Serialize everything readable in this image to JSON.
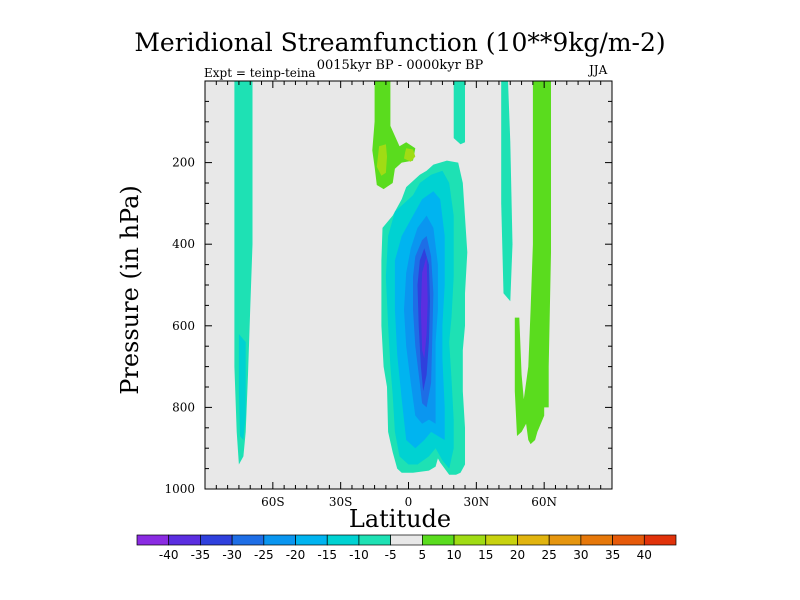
{
  "chart_data": {
    "type": "heatmap",
    "title": "Meridional Streamfunction (10**9kg/m-2)",
    "subtitle": "0015kyr BP - 0000kyr BP",
    "experiment": "Expt = teinp-teina",
    "season": "JJA",
    "xlabel": "Latitude",
    "ylabel": "Pressure (in hPa)",
    "x_range": [
      -90,
      90
    ],
    "y_range": [
      0,
      1000
    ],
    "x_ticks": [
      {
        "value": -60,
        "label": "60S"
      },
      {
        "value": -30,
        "label": "30S"
      },
      {
        "value": 0,
        "label": "0"
      },
      {
        "value": 30,
        "label": "30N"
      },
      {
        "value": 60,
        "label": "60N"
      }
    ],
    "y_ticks": [
      {
        "value": 200,
        "label": "200"
      },
      {
        "value": 400,
        "label": "400"
      },
      {
        "value": 600,
        "label": "600"
      },
      {
        "value": 800,
        "label": "800"
      },
      {
        "value": 1000,
        "label": "1000"
      }
    ],
    "colorbar": {
      "levels": [
        -40,
        -35,
        -30,
        -25,
        -20,
        -15,
        -10,
        -5,
        5,
        10,
        15,
        20,
        25,
        30,
        35,
        40
      ],
      "colors": [
        "#8a2be2",
        "#5b2ee0",
        "#2f40dd",
        "#1e6ee6",
        "#0a96f0",
        "#00b4f0",
        "#00d2d2",
        "#1ee1b4",
        "#e8e8e8",
        "#5adc1e",
        "#a0dc14",
        "#c8d20f",
        "#e1b40f",
        "#e6960f",
        "#e6780a",
        "#e65a0a",
        "#e1320a"
      ]
    },
    "background_color": "#e8e8e8",
    "features": [
      {
        "name": "southern-high-latitude-negative-band",
        "sign": "negative",
        "lat_range": [
          -77,
          -69
        ],
        "pressure_range": [
          0,
          940
        ],
        "min_value": -10
      },
      {
        "name": "northern-high-latitude-positive-band",
        "sign": "positive",
        "lat_range": [
          47,
          63
        ],
        "pressure_range": [
          0,
          890
        ],
        "max_value": 10
      },
      {
        "name": "tropical-upper-positive-cell",
        "sign": "positive",
        "lat_range": [
          -15,
          3
        ],
        "pressure_range": [
          0,
          270
        ],
        "max_value": 15
      },
      {
        "name": "tropical-negative-cell",
        "sign": "negative",
        "lat_range": [
          -12,
          23
        ],
        "pressure_range": [
          190,
          965
        ],
        "min_value": -35
      },
      {
        "name": "subtropical-negative-band",
        "sign": "negative",
        "lat_range": [
          20,
          25
        ],
        "pressure_range": [
          0,
          150
        ],
        "min_value": -10
      },
      {
        "name": "mid-latitude-negative-band",
        "sign": "negative",
        "lat_range": [
          40,
          45
        ],
        "pressure_range": [
          0,
          520
        ],
        "min_value": -10
      }
    ]
  }
}
